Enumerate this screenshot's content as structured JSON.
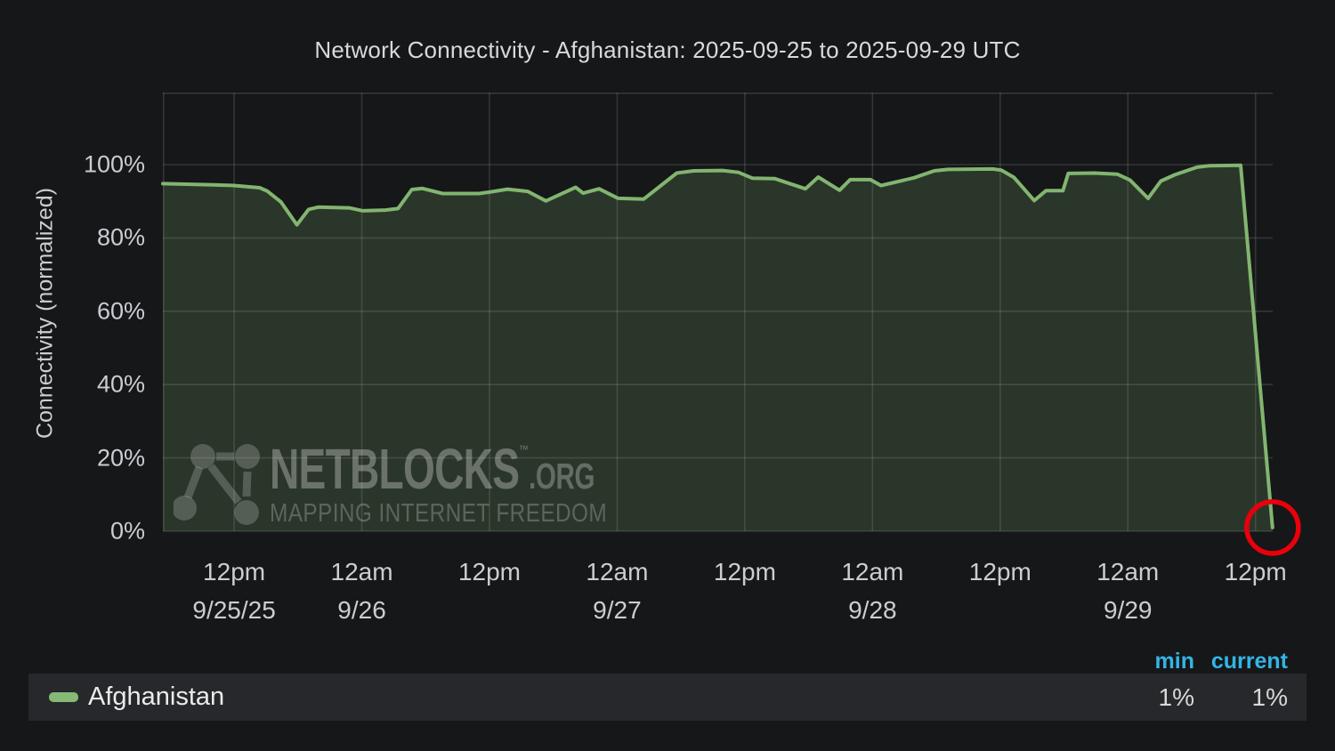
{
  "title": "Network Connectivity - Afghanistan: 2025-09-25 to 2025-09-29 UTC",
  "y_axis": {
    "label": "Connectivity (normalized)",
    "ticks": [
      "100%",
      "80%",
      "60%",
      "40%",
      "20%",
      "0%"
    ],
    "tick_values": [
      100,
      80,
      60,
      40,
      20,
      0
    ]
  },
  "x_axis": {
    "ticks": [
      {
        "hour": 12,
        "time": "12pm",
        "date": "9/25/25"
      },
      {
        "hour": 24,
        "time": "12am",
        "date": "9/26"
      },
      {
        "hour": 36,
        "time": "12pm",
        "date": ""
      },
      {
        "hour": 48,
        "time": "12am",
        "date": "9/27"
      },
      {
        "hour": 60,
        "time": "12pm",
        "date": ""
      },
      {
        "hour": 72,
        "time": "12am",
        "date": "9/28"
      },
      {
        "hour": 84,
        "time": "12pm",
        "date": ""
      },
      {
        "hour": 96,
        "time": "12am",
        "date": "9/29"
      },
      {
        "hour": 108,
        "time": "12pm",
        "date": ""
      }
    ]
  },
  "chart_data": {
    "type": "area",
    "title": "Network Connectivity - Afghanistan: 2025-09-25 to 2025-09-29 UTC",
    "xlabel": "",
    "ylabel": "Connectivity (normalized)",
    "x_unit": "hours since 2025-09-25 00:00 UTC",
    "x_range": [
      5.3,
      110.2
    ],
    "ylim": [
      0,
      100
    ],
    "y_unit": "percent",
    "grid": true,
    "legend_position": "bottom",
    "series": [
      {
        "name": "Afghanistan",
        "color": "#82b570",
        "min": "1%",
        "current": "1%",
        "points": [
          [
            5.3,
            94.8
          ],
          [
            10.1,
            94.5
          ],
          [
            12.0,
            94.3
          ],
          [
            14.4,
            93.7
          ],
          [
            15.1,
            92.8
          ],
          [
            16.4,
            89.8
          ],
          [
            17.9,
            83.6
          ],
          [
            19.0,
            87.8
          ],
          [
            19.9,
            88.4
          ],
          [
            22.8,
            88.2
          ],
          [
            24.1,
            87.4
          ],
          [
            26.2,
            87.6
          ],
          [
            27.4,
            88.0
          ],
          [
            28.7,
            93.2
          ],
          [
            29.7,
            93.5
          ],
          [
            31.6,
            92.1
          ],
          [
            35.0,
            92.1
          ],
          [
            36.0,
            92.5
          ],
          [
            37.7,
            93.3
          ],
          [
            39.6,
            92.7
          ],
          [
            41.3,
            90.1
          ],
          [
            44.1,
            93.8
          ],
          [
            44.8,
            92.2
          ],
          [
            46.3,
            93.4
          ],
          [
            48.1,
            90.8
          ],
          [
            50.5,
            90.6
          ],
          [
            53.6,
            97.7
          ],
          [
            55.2,
            98.3
          ],
          [
            57.9,
            98.4
          ],
          [
            59.4,
            97.9
          ],
          [
            60.7,
            96.3
          ],
          [
            62.8,
            96.2
          ],
          [
            65.7,
            93.4
          ],
          [
            66.9,
            96.6
          ],
          [
            68.9,
            93.0
          ],
          [
            69.9,
            95.9
          ],
          [
            71.8,
            95.9
          ],
          [
            72.8,
            94.3
          ],
          [
            75.9,
            96.4
          ],
          [
            77.8,
            98.3
          ],
          [
            79.1,
            98.7
          ],
          [
            83.3,
            98.8
          ],
          [
            84.1,
            98.5
          ],
          [
            85.3,
            96.5
          ],
          [
            87.2,
            90.2
          ],
          [
            88.3,
            92.9
          ],
          [
            89.9,
            92.9
          ],
          [
            90.4,
            97.6
          ],
          [
            92.9,
            97.7
          ],
          [
            95.0,
            97.4
          ],
          [
            96.2,
            95.8
          ],
          [
            97.9,
            90.8
          ],
          [
            99.1,
            95.5
          ],
          [
            100.4,
            97.2
          ],
          [
            102.5,
            99.3
          ],
          [
            103.7,
            99.7
          ],
          [
            106.6,
            99.8
          ],
          [
            109.6,
            1.0
          ]
        ]
      }
    ],
    "annotations": [
      {
        "type": "circle",
        "x": 109.6,
        "y": 1,
        "radius_px": 29,
        "color": "#e8000a"
      }
    ]
  },
  "legend": {
    "series_label": "Afghanistan",
    "columns": [
      {
        "label": "min",
        "value": "1%"
      },
      {
        "label": "current",
        "value": "1%"
      }
    ]
  },
  "watermark": {
    "brand": "NETBLOCKS",
    "tm": "™",
    "suffix": ".ORG",
    "tagline": "MAPPING INTERNET FREEDOM"
  },
  "colors": {
    "background": "#161719",
    "legend_background": "#26282b",
    "line_green": "#82b570",
    "accent_blue": "#33b5e5",
    "annotation_red": "#e8000a",
    "text": "#c9ced3"
  }
}
